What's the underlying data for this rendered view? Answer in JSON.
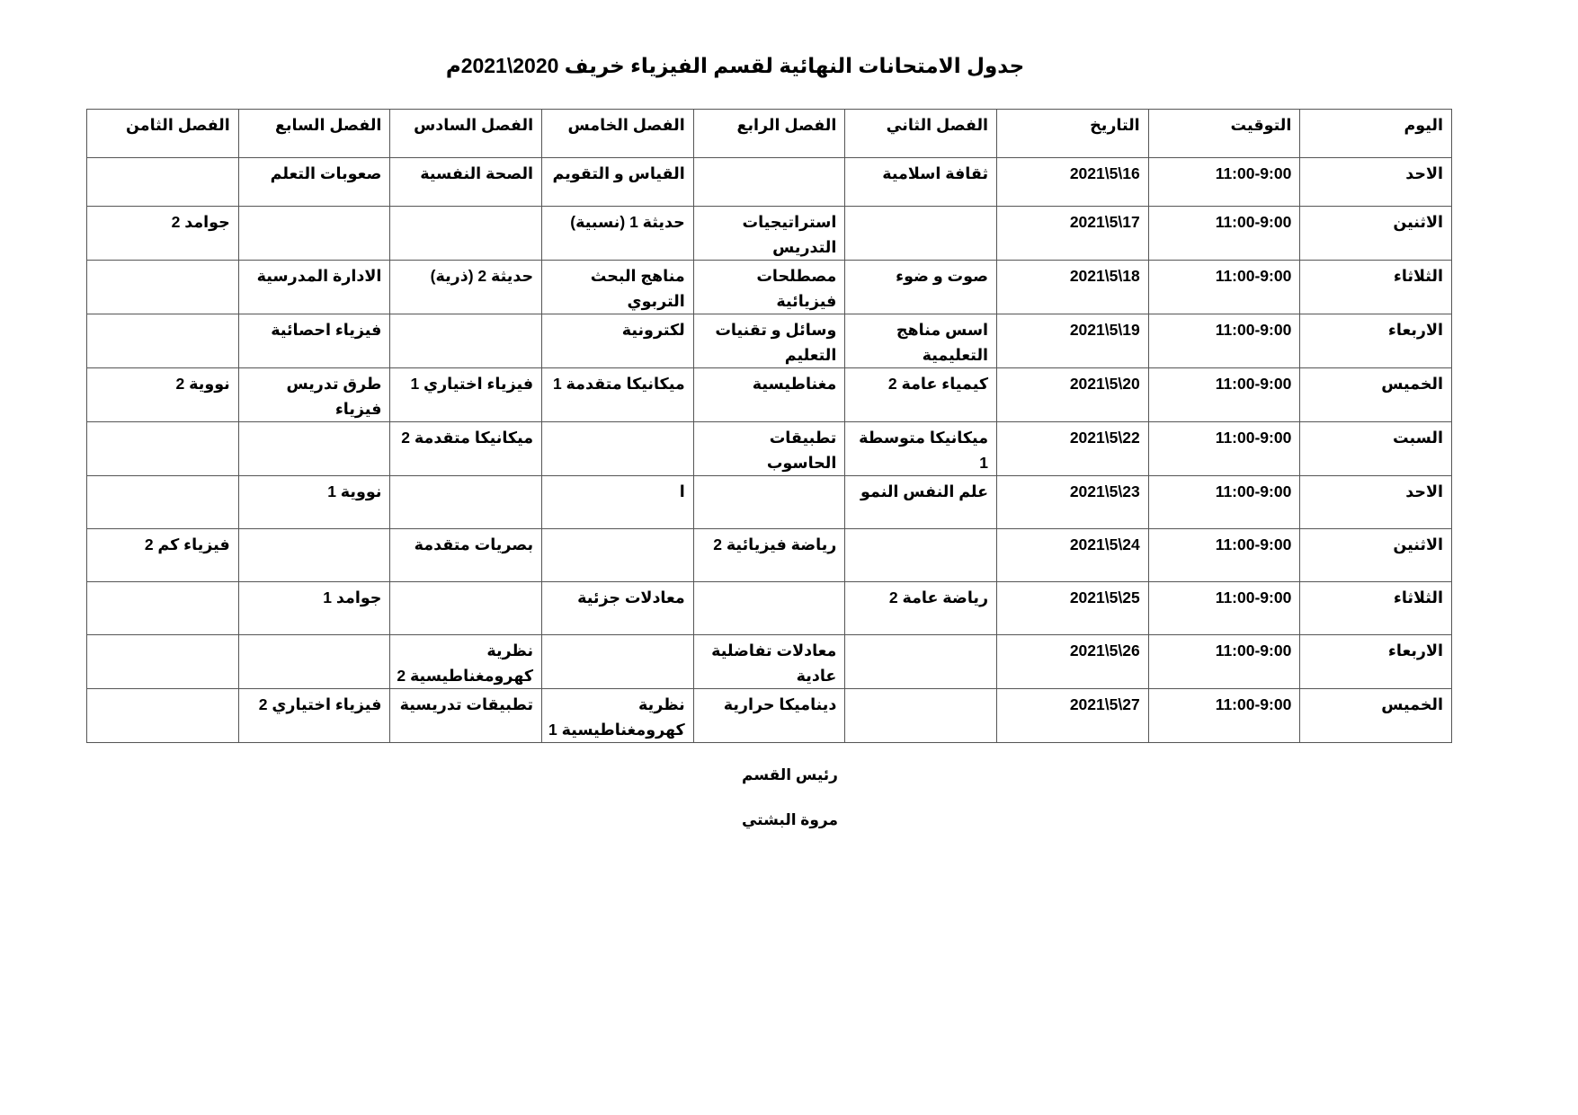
{
  "title": "جدول الامتحانات النهائية لقسم الفيزياء خريف 2020\\2021م",
  "headers": [
    "اليوم",
    "التوقيت",
    "التاريخ",
    "الفصل الثاني",
    "الفصل الرابع",
    "الفصل الخامس",
    "الفصل السادس",
    "الفصل السابع",
    "الفصل الثامن"
  ],
  "rows": [
    [
      "الاحد",
      "11:00-9:00",
      "2021\\5\\16",
      "ثقافة اسلامية",
      "",
      "القياس و التقويم",
      "الصحة النفسية",
      "صعوبات التعلم",
      ""
    ],
    [
      "الاثنين",
      "11:00-9:00",
      "2021\\5\\17",
      "",
      "استراتيجيات التدريس",
      "حديثة 1 (نسبية)",
      "",
      "",
      "جوامد 2"
    ],
    [
      "الثلاثاء",
      "11:00-9:00",
      "2021\\5\\18",
      "صوت و ضوء",
      "مصطلحات فيزيائية",
      "مناهج البحث التربوي",
      "حديثة 2 (ذرية)",
      "الادارة المدرسية",
      ""
    ],
    [
      "الاربعاء",
      "11:00-9:00",
      "2021\\5\\19",
      "اسس مناهج التعليمية",
      "وسائل و تقنيات التعليم",
      "لكترونية",
      "",
      "فيزياء احصائية",
      ""
    ],
    [
      "الخميس",
      "11:00-9:00",
      "2021\\5\\20",
      "كيمياء عامة 2",
      "مغناطيسية",
      "ميكانيكا متقدمة 1",
      "فيزياء اختياري 1",
      "طرق تدريس فيزياء",
      "نووية 2"
    ],
    [
      "السبت",
      "11:00-9:00",
      "2021\\5\\22",
      "ميكانيكا متوسطة 1",
      "تطبيقات الحاسوب",
      "",
      "ميكانيكا متقدمة 2",
      "",
      ""
    ],
    [
      "الاحد",
      "11:00-9:00",
      "2021\\5\\23",
      "علم النفس النمو",
      "",
      "ا",
      "",
      "نووية 1",
      ""
    ],
    [
      "الاثنين",
      "11:00-9:00",
      "2021\\5\\24",
      "",
      "رياضة فيزيائية 2",
      "",
      "بصريات متقدمة",
      "",
      "فيزياء كم 2"
    ],
    [
      "الثلاثاء",
      "11:00-9:00",
      "2021\\5\\25",
      "رياضة عامة 2",
      "",
      "معادلات جزئية",
      "",
      "جوامد 1",
      ""
    ],
    [
      "الاربعاء",
      "11:00-9:00",
      "2021\\5\\26",
      "",
      "معادلات تفاضلية عادية",
      "",
      "نظرية كهرومغناطيسية 2",
      "",
      ""
    ],
    [
      "الخميس",
      "11:00-9:00",
      "2021\\5\\27",
      "",
      "ديناميكا حرارية",
      "نظرية كهرومغناطيسية 1",
      "تطبيقات تدريسية",
      "فيزياء اختياري 2",
      ""
    ]
  ],
  "footer": {
    "role": "رئيس القسم",
    "name": "مروة البشتي"
  }
}
